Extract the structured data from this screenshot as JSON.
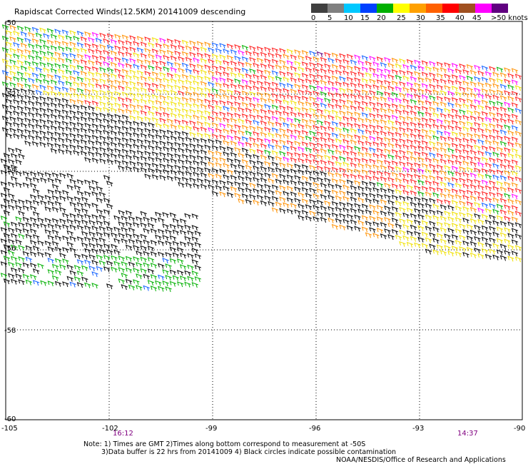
{
  "title": "Rapidscat Corrected Winds(12.5KM) 20141009 descending",
  "legend": {
    "labels": [
      "0",
      "5",
      "10",
      "15",
      "20",
      "25",
      "30",
      "35",
      "40",
      "45",
      ">50 knots"
    ],
    "colors": [
      "#404040",
      "#808080",
      "#00c8ff",
      "#0040ff",
      "#00b000",
      "#ffff00",
      "#ffa000",
      "#ff6000",
      "#ff0000",
      "#a05020",
      "#ff00ff",
      "#600080"
    ]
  },
  "axes": {
    "lon_labels": [
      "-105",
      "-102",
      "-99",
      "-96",
      "-93",
      "-90"
    ],
    "lat_labels": [
      "-50",
      "-52",
      "-54",
      "-56",
      "-58",
      "-60"
    ]
  },
  "times": {
    "left": "16:12",
    "right": "14:37"
  },
  "notes": {
    "line1": "Note: 1) Times are GMT 2)Times along bottom correspond to measurement at -50S",
    "line2": "3)Data buffer is 22 hrs from 20141009 4) Black circles indicate possible contamination",
    "line3": "NOAA/NESDIS/Office of Research and Applications"
  }
}
